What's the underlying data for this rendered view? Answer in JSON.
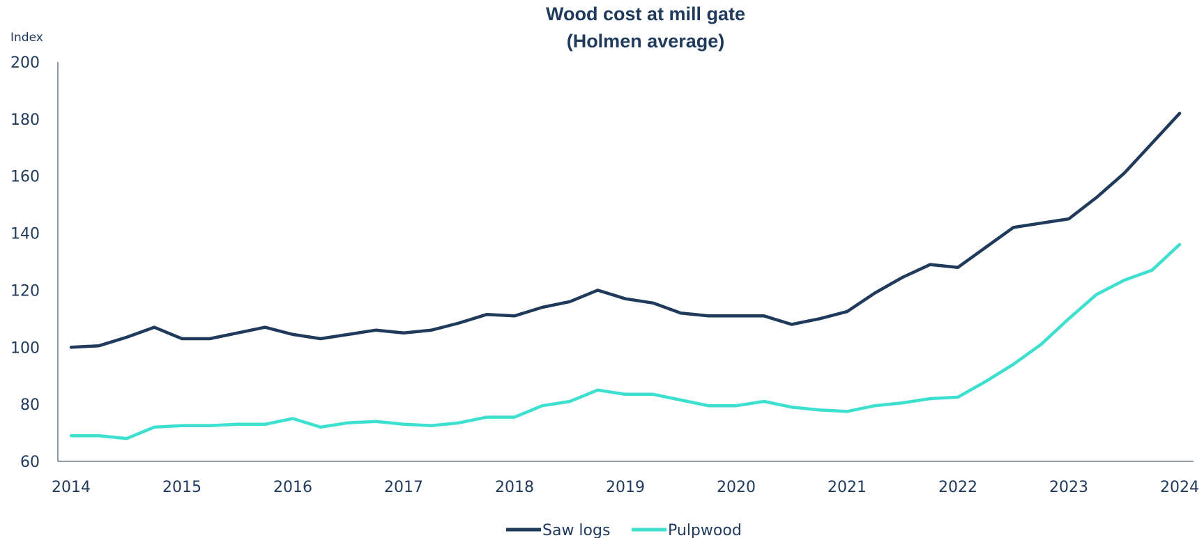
{
  "chart_data": {
    "type": "line",
    "title": [
      "Wood cost at mill gate",
      "(Holmen average)"
    ],
    "ylabel": "Index",
    "xlabel": "",
    "ylim": [
      60,
      200
    ],
    "xlim": [
      2014,
      2024
    ],
    "yticks": [
      60,
      80,
      100,
      120,
      140,
      160,
      180,
      200
    ],
    "xticks": [
      2014,
      2015,
      2016,
      2017,
      2018,
      2019,
      2020,
      2021,
      2022,
      2023,
      2024
    ],
    "grid": false,
    "legend_position": "bottom",
    "series": [
      {
        "name": "Saw logs",
        "color": "#1f3a5a",
        "x": [
          2014,
          2014.25,
          2014.5,
          2014.75,
          2015,
          2015.25,
          2015.5,
          2015.75,
          2016,
          2016.25,
          2016.5,
          2016.75,
          2017,
          2017.25,
          2017.5,
          2017.75,
          2018,
          2018.25,
          2018.5,
          2018.75,
          2019,
          2019.25,
          2019.5,
          2019.75,
          2020,
          2020.25,
          2020.5,
          2020.75,
          2021,
          2021.25,
          2021.5,
          2021.75,
          2022,
          2022.25,
          2022.5,
          2022.75,
          2023,
          2023.25,
          2023.5,
          2023.75,
          2024
        ],
        "values": [
          100,
          100.5,
          103.5,
          107,
          103,
          103,
          105,
          107,
          104.5,
          103,
          104.5,
          106,
          105,
          106,
          108.5,
          111.5,
          111,
          114,
          116,
          120,
          117,
          115.5,
          112,
          111,
          111,
          111,
          108,
          110,
          112.5,
          119,
          124.5,
          129,
          128,
          135,
          142,
          143.5,
          145,
          152.5,
          161,
          171.5,
          182
        ]
      },
      {
        "name": "Pulpwood",
        "color": "#3de0cf",
        "x": [
          2014,
          2014.25,
          2014.5,
          2014.75,
          2015,
          2015.25,
          2015.5,
          2015.75,
          2016,
          2016.25,
          2016.5,
          2016.75,
          2017,
          2017.25,
          2017.5,
          2017.75,
          2018,
          2018.25,
          2018.5,
          2018.75,
          2019,
          2019.25,
          2019.5,
          2019.75,
          2020,
          2020.25,
          2020.5,
          2020.75,
          2021,
          2021.25,
          2021.5,
          2021.75,
          2022,
          2022.25,
          2022.5,
          2022.75,
          2023,
          2023.25,
          2023.5,
          2023.75,
          2024
        ],
        "values": [
          69,
          69,
          68,
          72,
          72.5,
          72.5,
          73,
          73,
          75,
          72,
          73.5,
          74,
          73,
          72.5,
          73.5,
          75.5,
          75.5,
          79.5,
          81,
          85,
          83.5,
          83.5,
          81.5,
          79.5,
          79.5,
          81,
          79,
          78,
          77.5,
          79.5,
          80.5,
          82,
          82.5,
          88,
          94,
          101,
          110,
          118.5,
          123.5,
          127,
          136
        ]
      }
    ]
  }
}
